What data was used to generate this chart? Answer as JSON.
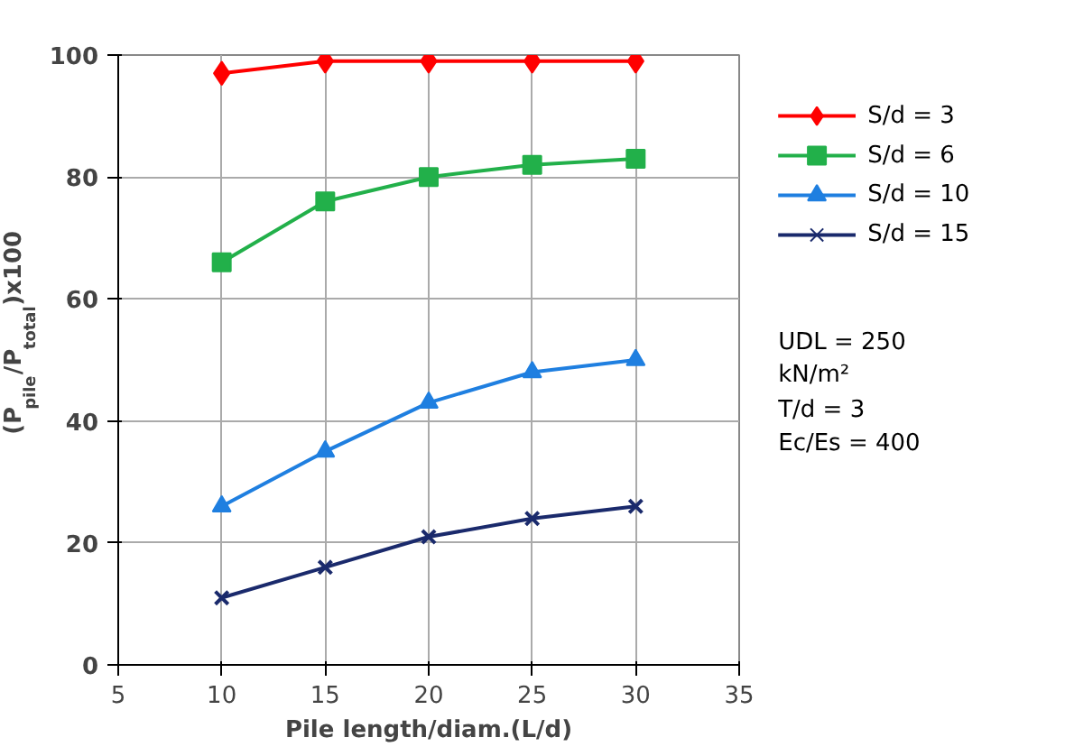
{
  "chart_data": {
    "type": "line",
    "xlabel": "Pile length/diam.(L/d)",
    "ylabel": "(P$_{pile}$/P$_{total}$)x100",
    "x": [
      10,
      15,
      20,
      25,
      30
    ],
    "series": [
      {
        "name": "S/d = 3",
        "color": "#ff0000",
        "marker": "diamond",
        "values": [
          97,
          99,
          99,
          99,
          99
        ]
      },
      {
        "name": "S/d = 6",
        "color": "#22b04a",
        "marker": "square",
        "values": [
          66,
          76,
          80,
          82,
          83
        ]
      },
      {
        "name": "S/d = 10",
        "color": "#1f7fe0",
        "marker": "triangle",
        "values": [
          26,
          35,
          43,
          48,
          50
        ]
      },
      {
        "name": "S/d = 15",
        "color": "#1a2a6c",
        "marker": "cross",
        "values": [
          11,
          16,
          21,
          24,
          26
        ]
      }
    ],
    "xlim": [
      5,
      35
    ],
    "xticks": [
      5,
      10,
      15,
      20,
      25,
      30,
      35
    ],
    "ylim": [
      0,
      100
    ],
    "yticks": [
      0,
      20,
      40,
      60,
      80,
      100
    ],
    "grid": true,
    "legend": "right",
    "line_style": "solid",
    "annotations": [
      "UDL = 250\n       kN/m²",
      "T/d    = 3",
      "Ec/Es = 400"
    ]
  }
}
